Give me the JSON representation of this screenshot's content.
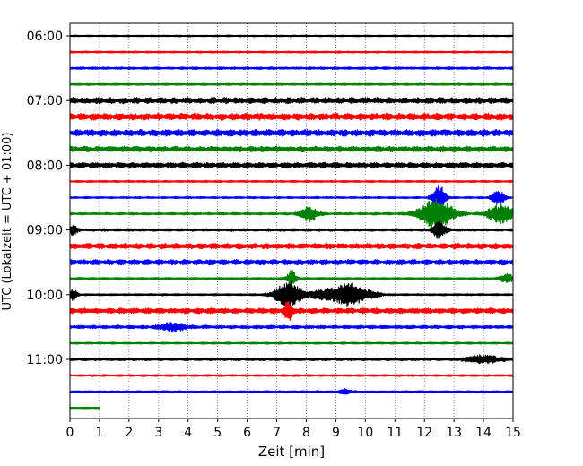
{
  "chart_data": {
    "type": "line",
    "title": "",
    "xlabel": "Zeit  [min]",
    "ylabel": "UTC (Lokalzeit = UTC + 01:00)",
    "xlim": [
      0,
      15
    ],
    "x_ticks": [
      0,
      1,
      2,
      3,
      4,
      5,
      6,
      7,
      8,
      9,
      10,
      11,
      12,
      13,
      14,
      15
    ],
    "x_tick_labels": [
      "0",
      "1",
      "2",
      "3",
      "4",
      "5",
      "6",
      "7",
      "8",
      "9",
      "10",
      "11",
      "12",
      "13",
      "14",
      "15"
    ],
    "y_ticks": [
      "06:00",
      "07:00",
      "08:00",
      "09:00",
      "10:00",
      "11:00"
    ],
    "y_tick_labels": [
      "06:00",
      "07:00",
      "08:00",
      "09:00",
      "10:00",
      "11:00"
    ],
    "vertical_grid": true,
    "grid_style": "dotted",
    "trace_interval_min": 15,
    "trace_colors": [
      "#000000",
      "#ff0000",
      "#0000ff",
      "#008000"
    ],
    "traces": [
      {
        "start": "06:00",
        "color": "#000000",
        "noise": 0.12
      },
      {
        "start": "06:15",
        "color": "#ff0000",
        "noise": 0.14
      },
      {
        "start": "06:30",
        "color": "#0000ff",
        "noise": 0.18
      },
      {
        "start": "06:45",
        "color": "#008000",
        "noise": 0.15
      },
      {
        "start": "07:00",
        "color": "#000000",
        "noise": 0.45
      },
      {
        "start": "07:15",
        "color": "#ff0000",
        "noise": 0.5
      },
      {
        "start": "07:30",
        "color": "#0000ff",
        "noise": 0.48
      },
      {
        "start": "07:45",
        "color": "#008000",
        "noise": 0.42
      },
      {
        "start": "08:00",
        "color": "#000000",
        "noise": 0.4
      },
      {
        "start": "08:15",
        "color": "#ff0000",
        "noise": 0.15
      },
      {
        "start": "08:30",
        "color": "#0000ff",
        "noise": 0.15,
        "events": [
          {
            "t": 12.5,
            "amp": 2.0,
            "dur": 0.3
          },
          {
            "t": 14.5,
            "amp": 1.2,
            "dur": 0.3
          }
        ]
      },
      {
        "start": "08:45",
        "color": "#008000",
        "noise": 0.18,
        "events": [
          {
            "t": 8.1,
            "amp": 1.2,
            "dur": 0.4
          },
          {
            "t": 12.4,
            "amp": 2.6,
            "dur": 0.8
          },
          {
            "t": 14.6,
            "amp": 1.6,
            "dur": 0.6
          }
        ]
      },
      {
        "start": "09:00",
        "color": "#000000",
        "noise": 0.2,
        "events": [
          {
            "t": 0.1,
            "amp": 0.8,
            "dur": 0.2
          },
          {
            "t": 12.5,
            "amp": 1.4,
            "dur": 0.3
          }
        ]
      },
      {
        "start": "09:15",
        "color": "#ff0000",
        "noise": 0.4
      },
      {
        "start": "09:30",
        "color": "#0000ff",
        "noise": 0.4
      },
      {
        "start": "09:45",
        "color": "#008000",
        "noise": 0.15,
        "events": [
          {
            "t": 7.5,
            "amp": 1.4,
            "dur": 0.2
          },
          {
            "t": 14.8,
            "amp": 0.7,
            "dur": 0.3
          }
        ]
      },
      {
        "start": "10:00",
        "color": "#000000",
        "noise": 0.15,
        "events": [
          {
            "t": 0.1,
            "amp": 0.9,
            "dur": 0.2
          },
          {
            "t": 7.4,
            "amp": 2.3,
            "dur": 0.6
          },
          {
            "t": 8.7,
            "amp": 0.9,
            "dur": 0.8
          },
          {
            "t": 9.5,
            "amp": 1.9,
            "dur": 0.6
          },
          {
            "t": 10.2,
            "amp": 0.5,
            "dur": 0.4
          }
        ]
      },
      {
        "start": "10:15",
        "color": "#ff0000",
        "noise": 0.4,
        "events": [
          {
            "t": 7.4,
            "amp": 1.5,
            "dur": 0.2
          }
        ]
      },
      {
        "start": "10:30",
        "color": "#0000ff",
        "noise": 0.25,
        "events": [
          {
            "t": 3.5,
            "amp": 0.6,
            "dur": 0.6
          }
        ]
      },
      {
        "start": "10:45",
        "color": "#008000",
        "noise": 0.15
      },
      {
        "start": "11:00",
        "color": "#000000",
        "noise": 0.2,
        "events": [
          {
            "t": 14.0,
            "amp": 0.6,
            "dur": 0.8
          }
        ]
      },
      {
        "start": "11:15",
        "color": "#ff0000",
        "noise": 0.15
      },
      {
        "start": "11:30",
        "color": "#0000ff",
        "noise": 0.15,
        "events": [
          {
            "t": 9.3,
            "amp": 0.4,
            "dur": 0.3
          }
        ]
      },
      {
        "start": "11:45",
        "color": "#008000",
        "noise": 0.12,
        "end": 1.0
      }
    ]
  }
}
